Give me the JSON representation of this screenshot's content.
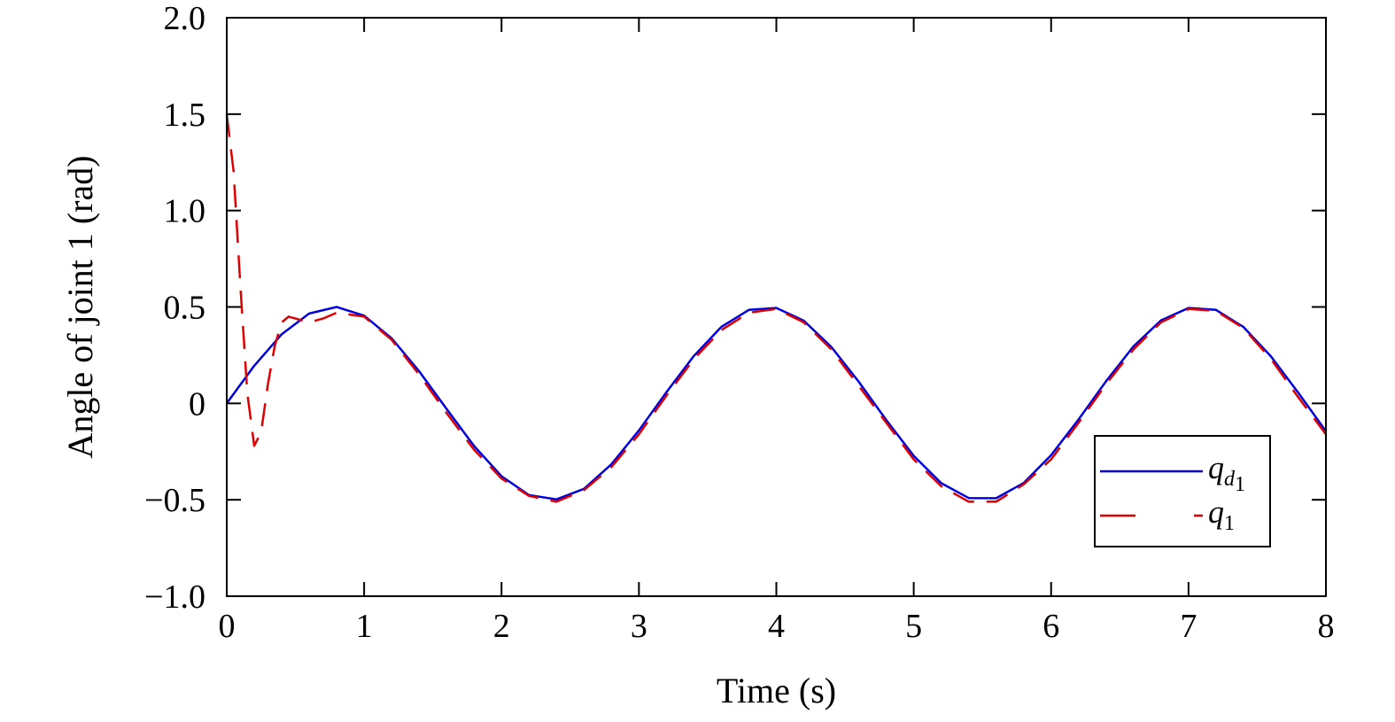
{
  "chart_data": {
    "type": "line",
    "title": "",
    "xlabel": "Time (s)",
    "ylabel": "Angle of joint 1 (rad)",
    "xlim": [
      0,
      8
    ],
    "ylim": [
      -1.0,
      2.0
    ],
    "xticks": [
      "0",
      "1",
      "2",
      "3",
      "4",
      "5",
      "6",
      "7",
      "8"
    ],
    "yticks": [
      "−1.0",
      "−0.5",
      "0",
      "0.5",
      "1.0",
      "1.5",
      "2.0"
    ],
    "grid": false,
    "legend_position": "bottom-right",
    "series": [
      {
        "name": "q_d1",
        "legend_main": "q",
        "legend_sub": "d",
        "legend_subsub": "1",
        "color": "#0000dd",
        "style": "solid",
        "x": [
          0,
          0.2,
          0.4,
          0.6,
          0.8,
          1.0,
          1.2,
          1.4,
          1.6,
          1.8,
          2.0,
          2.2,
          2.4,
          2.6,
          2.8,
          3.0,
          3.2,
          3.4,
          3.6,
          3.8,
          4.0,
          4.2,
          4.4,
          4.6,
          4.8,
          5.0,
          5.2,
          5.4,
          5.6,
          5.8,
          6.0,
          6.2,
          6.4,
          6.6,
          6.8,
          7.0,
          7.2,
          7.4,
          7.6,
          7.8,
          8.0
        ],
        "y": [
          0,
          0.195,
          0.359,
          0.466,
          0.5,
          0.455,
          0.338,
          0.167,
          -0.029,
          -0.221,
          -0.378,
          -0.476,
          -0.498,
          -0.443,
          -0.316,
          -0.14,
          0.058,
          0.246,
          0.397,
          0.485,
          0.495,
          0.429,
          0.293,
          0.112,
          -0.086,
          -0.272,
          -0.414,
          -0.491,
          -0.492,
          -0.413,
          -0.268,
          -0.083,
          0.115,
          0.296,
          0.43,
          0.495,
          0.485,
          0.396,
          0.243,
          0.054,
          -0.144
        ]
      },
      {
        "name": "q_1",
        "legend_main": "q",
        "legend_sub": "1",
        "color": "#dd0000",
        "style": "dashed",
        "x": [
          0,
          0.05,
          0.1,
          0.15,
          0.2,
          0.25,
          0.3,
          0.35,
          0.4,
          0.45,
          0.5,
          0.6,
          0.7,
          0.8,
          1.0,
          1.2,
          1.4,
          1.6,
          1.8,
          2.0,
          2.2,
          2.4,
          2.6,
          2.8,
          3.0,
          3.2,
          3.4,
          3.6,
          3.8,
          4.0,
          4.2,
          4.4,
          4.6,
          4.8,
          5.0,
          5.2,
          5.4,
          5.6,
          5.8,
          6.0,
          6.2,
          6.4,
          6.6,
          6.8,
          7.0,
          7.2,
          7.4,
          7.6,
          7.8,
          8.0
        ],
        "y": [
          1.5,
          1.2,
          0.6,
          0.05,
          -0.22,
          -0.15,
          0.1,
          0.3,
          0.42,
          0.45,
          0.44,
          0.42,
          0.44,
          0.47,
          0.45,
          0.33,
          0.15,
          -0.05,
          -0.24,
          -0.39,
          -0.48,
          -0.51,
          -0.45,
          -0.33,
          -0.16,
          0.04,
          0.23,
          0.38,
          0.47,
          0.49,
          0.42,
          0.28,
          0.09,
          -0.1,
          -0.29,
          -0.43,
          -0.51,
          -0.51,
          -0.42,
          -0.29,
          -0.1,
          0.1,
          0.28,
          0.42,
          0.49,
          0.48,
          0.39,
          0.23,
          0.03,
          -0.16
        ]
      }
    ]
  }
}
